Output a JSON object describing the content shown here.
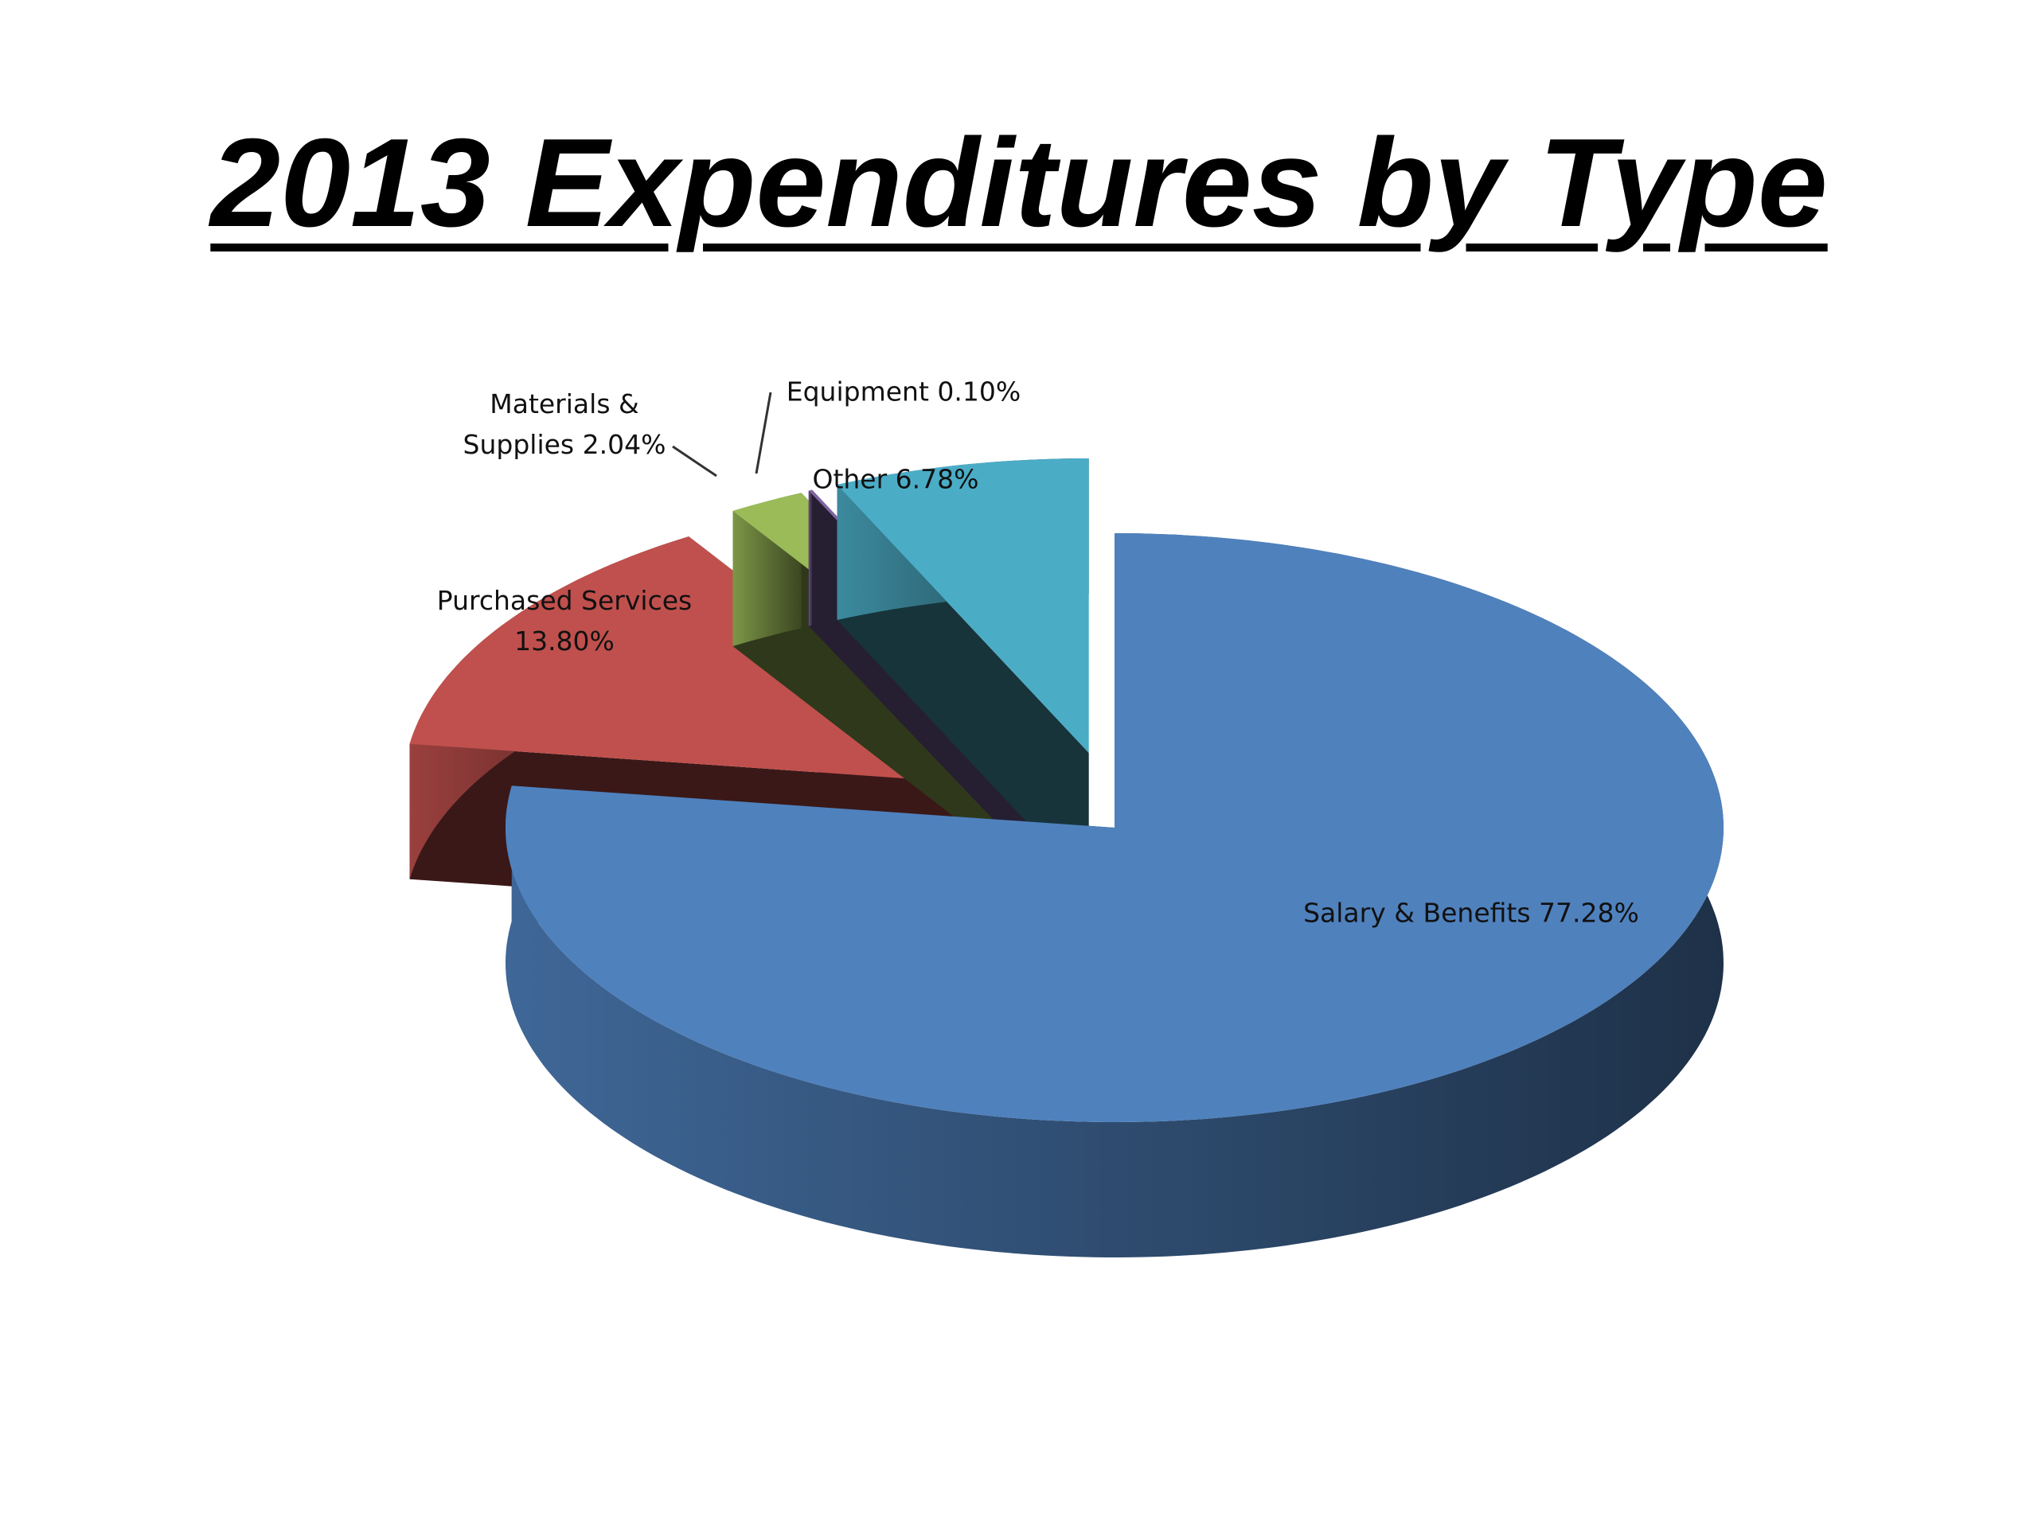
{
  "chart_data": {
    "type": "pie3d",
    "title": "2013 Expenditures by Type",
    "categories": [
      "Salary & Benefits",
      "Purchased Services",
      "Materials & Supplies",
      "Equipment",
      "Other"
    ],
    "values": [
      77.28,
      13.8,
      2.04,
      0.1,
      6.78
    ],
    "value_labels": [
      "77.28%",
      "13.80%",
      "2.04%",
      "0.10%",
      "6.78%"
    ],
    "colors": [
      "#4f81bd",
      "#c0504d",
      "#9bbb59",
      "#8064a2",
      "#4bacc6"
    ]
  }
}
